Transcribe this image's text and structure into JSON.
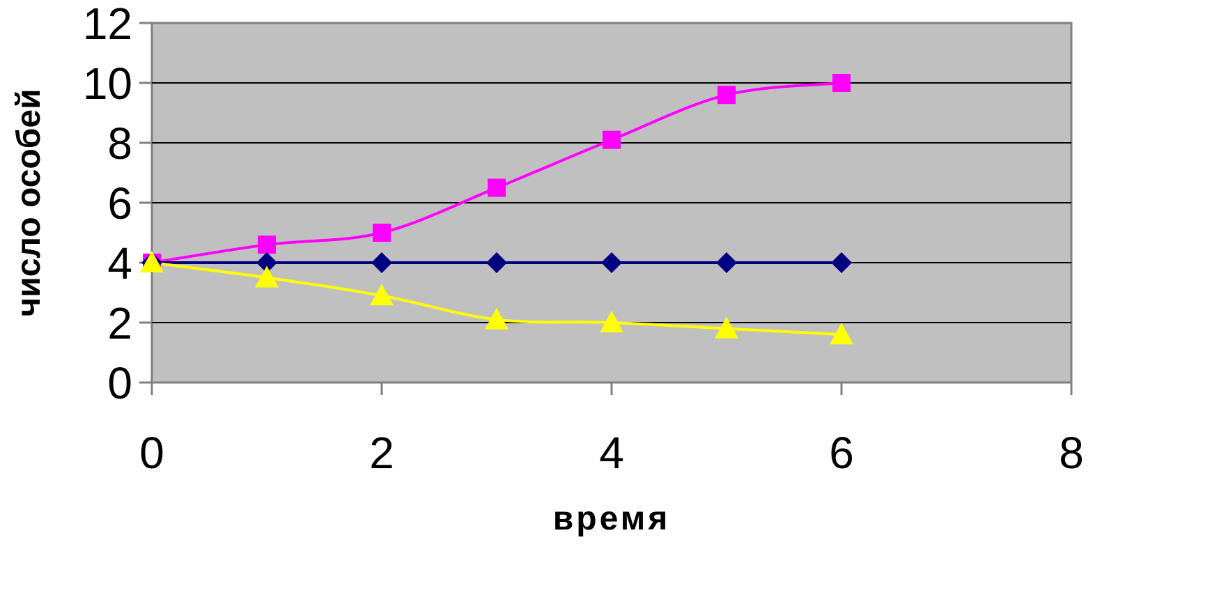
{
  "chart_data": {
    "type": "line",
    "title": "",
    "xlabel": "время",
    "ylabel": "число особей",
    "xlim": [
      0,
      8
    ],
    "ylim": [
      0,
      12
    ],
    "x_ticks": [
      "0",
      "2",
      "4",
      "6",
      "8"
    ],
    "y_ticks": [
      "0",
      "2",
      "4",
      "6",
      "8",
      "10",
      "12"
    ],
    "grid": "horizontal",
    "legend": "none",
    "plot_background": "#c0c0c0",
    "x": [
      0,
      1,
      2,
      3,
      4,
      5,
      6
    ],
    "series": [
      {
        "color": "#ff00ff",
        "marker": "square",
        "smooth": true,
        "values": [
          4,
          4.6,
          5,
          6.5,
          8.1,
          9.6,
          10
        ]
      },
      {
        "color": "#000080",
        "marker": "diamond",
        "smooth": false,
        "values": [
          4,
          4,
          4,
          4,
          4,
          4,
          4
        ]
      },
      {
        "color": "#ffff00",
        "marker": "triangle",
        "smooth": true,
        "values": [
          4,
          3.5,
          2.9,
          2.1,
          2.0,
          1.8,
          1.6
        ]
      }
    ]
  }
}
